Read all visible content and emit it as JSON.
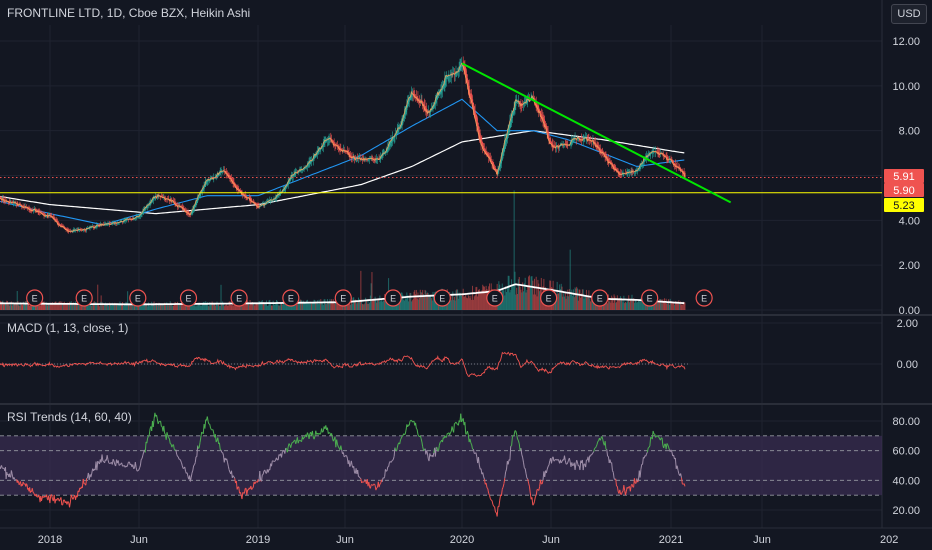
{
  "header": {
    "main_title": "FRONTLINE LTD, 1D, Cboe BZX, Heikin Ashi",
    "macd_title": "MACD (1, 13, close, 1)",
    "rsi_title": "RSI Trends (14, 60, 40)",
    "currency": "USD"
  },
  "earnings_marker": "E",
  "colors": {
    "background": "#131722",
    "grid": "#1f2330",
    "up": "#26a69a",
    "down": "#ef5350",
    "price_line": "#ef5350",
    "trendline": "#00e600",
    "support": "#ffff00",
    "ma_fast": "#2196f3",
    "ma_slow": "#ffffff",
    "rsi_up": "#4caf50",
    "rsi_mid": "#9e8ea8",
    "rsi_down": "#ef5350",
    "rsi_band": "#3a2d52"
  },
  "chart_data": [
    {
      "type": "candlestick",
      "title": "FRONTLINE LTD, 1D, Cboe BZX, Heikin Ashi",
      "currency": "USD",
      "x_ticks": [
        "2018",
        "Jun",
        "2019",
        "Jun",
        "2020",
        "Jun",
        "2021",
        "Jun",
        "202"
      ],
      "y_ticks": [
        "12.00",
        "10.00",
        "8.00",
        "6.00",
        "4.00",
        "2.00",
        "0.00"
      ],
      "ylim": [
        0,
        12.5
      ],
      "price_labels": [
        {
          "value": 5.91,
          "label": "5.91",
          "color": "#ef5350"
        },
        {
          "value": 5.9,
          "label": "5.90",
          "color": "#ef5350"
        },
        {
          "value": 5.23,
          "label": "5.23",
          "color": "#ffff00"
        }
      ],
      "support_level": 5.23,
      "trendline": {
        "from": {
          "x": "2020-01-01",
          "y": 11.0
        },
        "to": {
          "x": "2021-04-10",
          "y": 4.8
        }
      },
      "price_series": [
        {
          "x": "2017-09",
          "y": 5.1
        },
        {
          "x": "2017-11",
          "y": 4.6
        },
        {
          "x": "2018-01",
          "y": 4.2
        },
        {
          "x": "2018-02",
          "y": 3.5
        },
        {
          "x": "2018-03",
          "y": 3.6
        },
        {
          "x": "2018-04",
          "y": 3.8
        },
        {
          "x": "2018-05",
          "y": 3.9
        },
        {
          "x": "2018-06",
          "y": 4.2
        },
        {
          "x": "2018-07",
          "y": 5.2
        },
        {
          "x": "2018-08",
          "y": 4.8
        },
        {
          "x": "2018-09",
          "y": 4.3
        },
        {
          "x": "2018-10",
          "y": 5.8
        },
        {
          "x": "2018-11",
          "y": 6.3
        },
        {
          "x": "2018-12",
          "y": 5.2
        },
        {
          "x": "2019-01",
          "y": 4.6
        },
        {
          "x": "2019-02",
          "y": 5.0
        },
        {
          "x": "2019-03",
          "y": 5.9
        },
        {
          "x": "2019-04",
          "y": 6.6
        },
        {
          "x": "2019-05",
          "y": 7.7
        },
        {
          "x": "2019-06",
          "y": 7.0
        },
        {
          "x": "2019-07",
          "y": 6.7
        },
        {
          "x": "2019-08",
          "y": 6.8
        },
        {
          "x": "2019-09",
          "y": 7.8
        },
        {
          "x": "2019-10",
          "y": 9.6
        },
        {
          "x": "2019-11",
          "y": 8.7
        },
        {
          "x": "2019-12",
          "y": 10.4
        },
        {
          "x": "2020-01",
          "y": 10.9
        },
        {
          "x": "2020-02",
          "y": 7.6
        },
        {
          "x": "2020-03",
          "y": 6.0
        },
        {
          "x": "2020-04",
          "y": 9.4
        },
        {
          "x": "2020-05",
          "y": 9.6
        },
        {
          "x": "2020-06",
          "y": 7.4
        },
        {
          "x": "2020-07",
          "y": 7.5
        },
        {
          "x": "2020-08",
          "y": 7.7
        },
        {
          "x": "2020-09",
          "y": 7.1
        },
        {
          "x": "2020-10",
          "y": 6.0
        },
        {
          "x": "2020-11",
          "y": 6.2
        },
        {
          "x": "2020-12",
          "y": 7.1
        },
        {
          "x": "2021-01",
          "y": 6.6
        },
        {
          "x": "2021-01-25",
          "y": 5.91
        }
      ],
      "ma_fast_series": [
        {
          "x": "2017-09",
          "y": 4.9
        },
        {
          "x": "2018-01",
          "y": 4.3
        },
        {
          "x": "2018-04",
          "y": 3.8
        },
        {
          "x": "2018-07",
          "y": 4.5
        },
        {
          "x": "2018-10",
          "y": 5.1
        },
        {
          "x": "2019-01",
          "y": 5.1
        },
        {
          "x": "2019-04",
          "y": 6.0
        },
        {
          "x": "2019-07",
          "y": 6.9
        },
        {
          "x": "2019-10",
          "y": 8.2
        },
        {
          "x": "2020-01",
          "y": 9.4
        },
        {
          "x": "2020-03",
          "y": 8.0
        },
        {
          "x": "2020-05",
          "y": 8.0
        },
        {
          "x": "2020-07",
          "y": 7.6
        },
        {
          "x": "2020-09",
          "y": 7.0
        },
        {
          "x": "2020-11",
          "y": 6.4
        },
        {
          "x": "2021-01-25",
          "y": 6.7
        }
      ],
      "ma_slow_series": [
        {
          "x": "2017-09",
          "y": 5.1
        },
        {
          "x": "2018-01",
          "y": 4.7
        },
        {
          "x": "2018-07",
          "y": 4.3
        },
        {
          "x": "2019-01",
          "y": 4.7
        },
        {
          "x": "2019-07",
          "y": 5.6
        },
        {
          "x": "2019-10",
          "y": 6.4
        },
        {
          "x": "2020-01",
          "y": 7.5
        },
        {
          "x": "2020-05",
          "y": 8.0
        },
        {
          "x": "2020-09",
          "y": 7.6
        },
        {
          "x": "2021-01-25",
          "y": 7.0
        }
      ],
      "volume_series": [
        {
          "x": "2017-09",
          "y": 0.3
        },
        {
          "x": "2018-06",
          "y": 0.25
        },
        {
          "x": "2019-01",
          "y": 0.3
        },
        {
          "x": "2019-06",
          "y": 0.35
        },
        {
          "x": "2019-10",
          "y": 0.6
        },
        {
          "x": "2020-01",
          "y": 0.7
        },
        {
          "x": "2020-03",
          "y": 0.85
        },
        {
          "x": "2020-04",
          "y": 1.15
        },
        {
          "x": "2020-06",
          "y": 0.9
        },
        {
          "x": "2020-09",
          "y": 0.5
        },
        {
          "x": "2020-11",
          "y": 0.45
        },
        {
          "x": "2021-01-25",
          "y": 0.3
        }
      ],
      "earnings_dates": [
        "2017-11-28",
        "2018-02-28",
        "2018-05-30",
        "2018-08-29",
        "2018-11-28",
        "2019-02-27",
        "2019-05-29",
        "2019-08-28",
        "2019-11-26",
        "2020-02-26",
        "2020-05-28",
        "2020-08-27",
        "2020-11-24",
        "2021-02-25"
      ]
    },
    {
      "type": "line",
      "title": "MACD (1, 13, close, 1)",
      "y_ticks": [
        "2.00",
        "0.00"
      ],
      "ylim": [
        -1.8,
        2.2
      ]
    },
    {
      "type": "line",
      "title": "RSI Trends (14, 60, 40)",
      "y_ticks": [
        "80.00",
        "60.00",
        "40.00",
        "20.00"
      ],
      "ylim": [
        13,
        92
      ],
      "upper_band": 70,
      "upper_mid": 60,
      "lower_mid": 40,
      "lower_band": 30,
      "series": [
        {
          "x": "2017-09",
          "y": 52
        },
        {
          "x": "2017-12",
          "y": 30
        },
        {
          "x": "2018-02",
          "y": 25
        },
        {
          "x": "2018-04",
          "y": 55
        },
        {
          "x": "2018-06",
          "y": 48
        },
        {
          "x": "2018-07",
          "y": 85
        },
        {
          "x": "2018-09",
          "y": 40
        },
        {
          "x": "2018-10",
          "y": 82
        },
        {
          "x": "2018-12",
          "y": 30
        },
        {
          "x": "2019-01",
          "y": 40
        },
        {
          "x": "2019-03",
          "y": 65
        },
        {
          "x": "2019-05",
          "y": 75
        },
        {
          "x": "2019-07",
          "y": 40
        },
        {
          "x": "2019-08",
          "y": 35
        },
        {
          "x": "2019-10",
          "y": 82
        },
        {
          "x": "2019-11",
          "y": 55
        },
        {
          "x": "2020-01",
          "y": 82
        },
        {
          "x": "2020-03",
          "y": 17
        },
        {
          "x": "2020-04",
          "y": 75
        },
        {
          "x": "2020-05",
          "y": 25
        },
        {
          "x": "2020-06",
          "y": 55
        },
        {
          "x": "2020-08",
          "y": 50
        },
        {
          "x": "2020-09",
          "y": 70
        },
        {
          "x": "2020-10",
          "y": 30
        },
        {
          "x": "2020-11",
          "y": 40
        },
        {
          "x": "2020-12",
          "y": 72
        },
        {
          "x": "2021-01",
          "y": 60
        },
        {
          "x": "2021-01-25",
          "y": 34
        }
      ]
    }
  ]
}
